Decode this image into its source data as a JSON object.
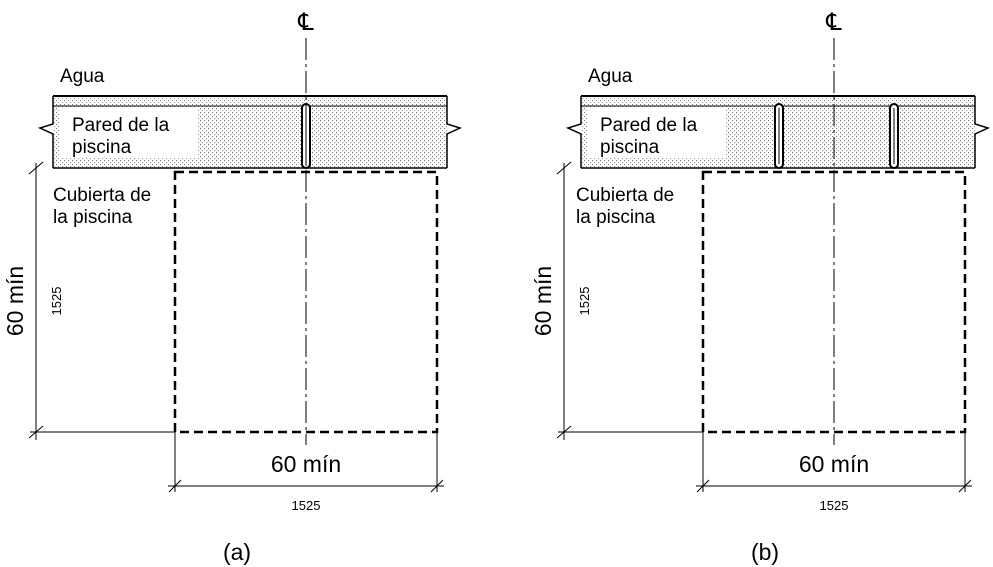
{
  "centerline_symbol": "℄",
  "panels": [
    {
      "id": "a",
      "caption": "(a)",
      "water_label": "Agua",
      "wall_label_line1": "Pared de la",
      "wall_label_line2": "piscina",
      "deck_label_line1": "Cubierta de",
      "deck_label_line2": "la piscina",
      "vertical_dim_in": "60 mín",
      "vertical_dim_mm": "1525",
      "horizontal_dim_in": "60 mín",
      "horizontal_dim_mm": "1525",
      "handrail_count": 1
    },
    {
      "id": "b",
      "caption": "(b)",
      "water_label": "Agua",
      "wall_label_line1": "Pared de la",
      "wall_label_line2": "piscina",
      "deck_label_line1": "Cubierta de",
      "deck_label_line2": "la piscina",
      "vertical_dim_in": "60 mín",
      "vertical_dim_mm": "1525",
      "horizontal_dim_in": "60 mín",
      "horizontal_dim_mm": "1525",
      "handrail_count": 2
    }
  ]
}
